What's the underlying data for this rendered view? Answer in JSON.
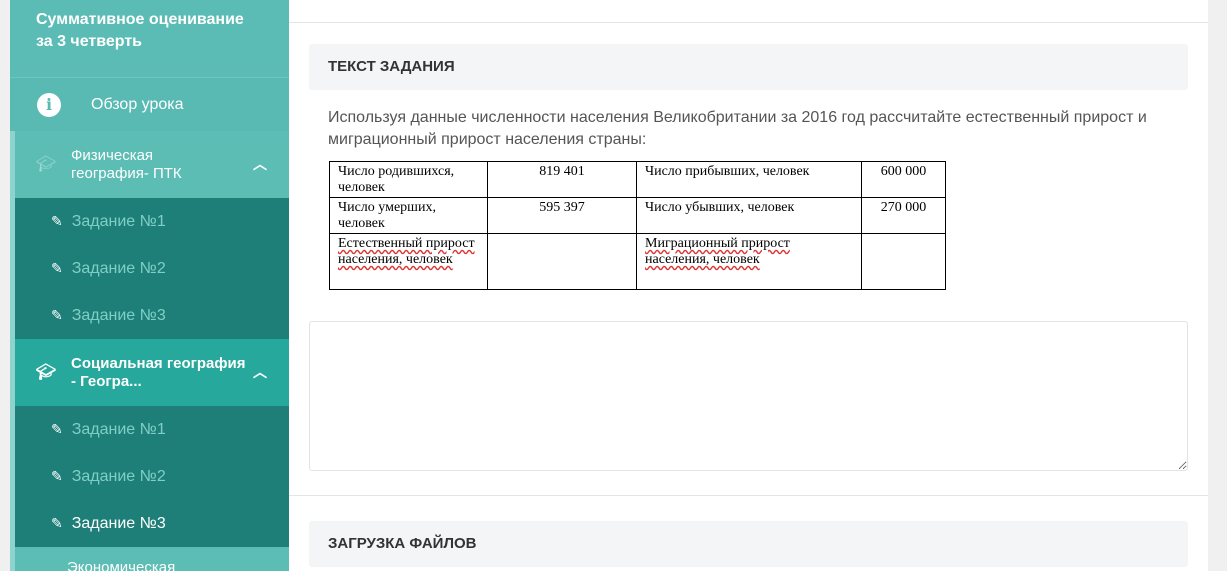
{
  "sidebar": {
    "title": "Суммативное оценивание за 3 четверть",
    "overview": "Обзор урока",
    "groups": [
      {
        "label": "Физическая география- ПТК",
        "items": [
          "Задание №1",
          "Задание №2",
          "Задание №3"
        ]
      },
      {
        "label": "Социальная география - Геогра...",
        "items": [
          "Задание №1",
          "Задание №2",
          "Задание №3"
        ],
        "active_item": "Задание №3"
      },
      {
        "label": "Экономическая"
      }
    ]
  },
  "main": {
    "task_header": "ТЕКСТ ЗАДАНИЯ",
    "task_text": "Используя данные численности населения Великобритании за 2016 год рассчитайте естественный прирост и миграционный прирост населения страны:",
    "table": [
      [
        "Число родившихся, человек",
        "819 401",
        "Число прибывших, человек",
        "600 000"
      ],
      [
        "Число умерших, человек",
        "595 397",
        "Число убывших, человек",
        "270 000"
      ],
      [
        "Естественный прирост населения, человек",
        "",
        "Миграционный прирост населения, человек",
        ""
      ]
    ],
    "answer_value": "",
    "upload_header": "ЗАГРУЗКА ФАЙЛОВ"
  }
}
